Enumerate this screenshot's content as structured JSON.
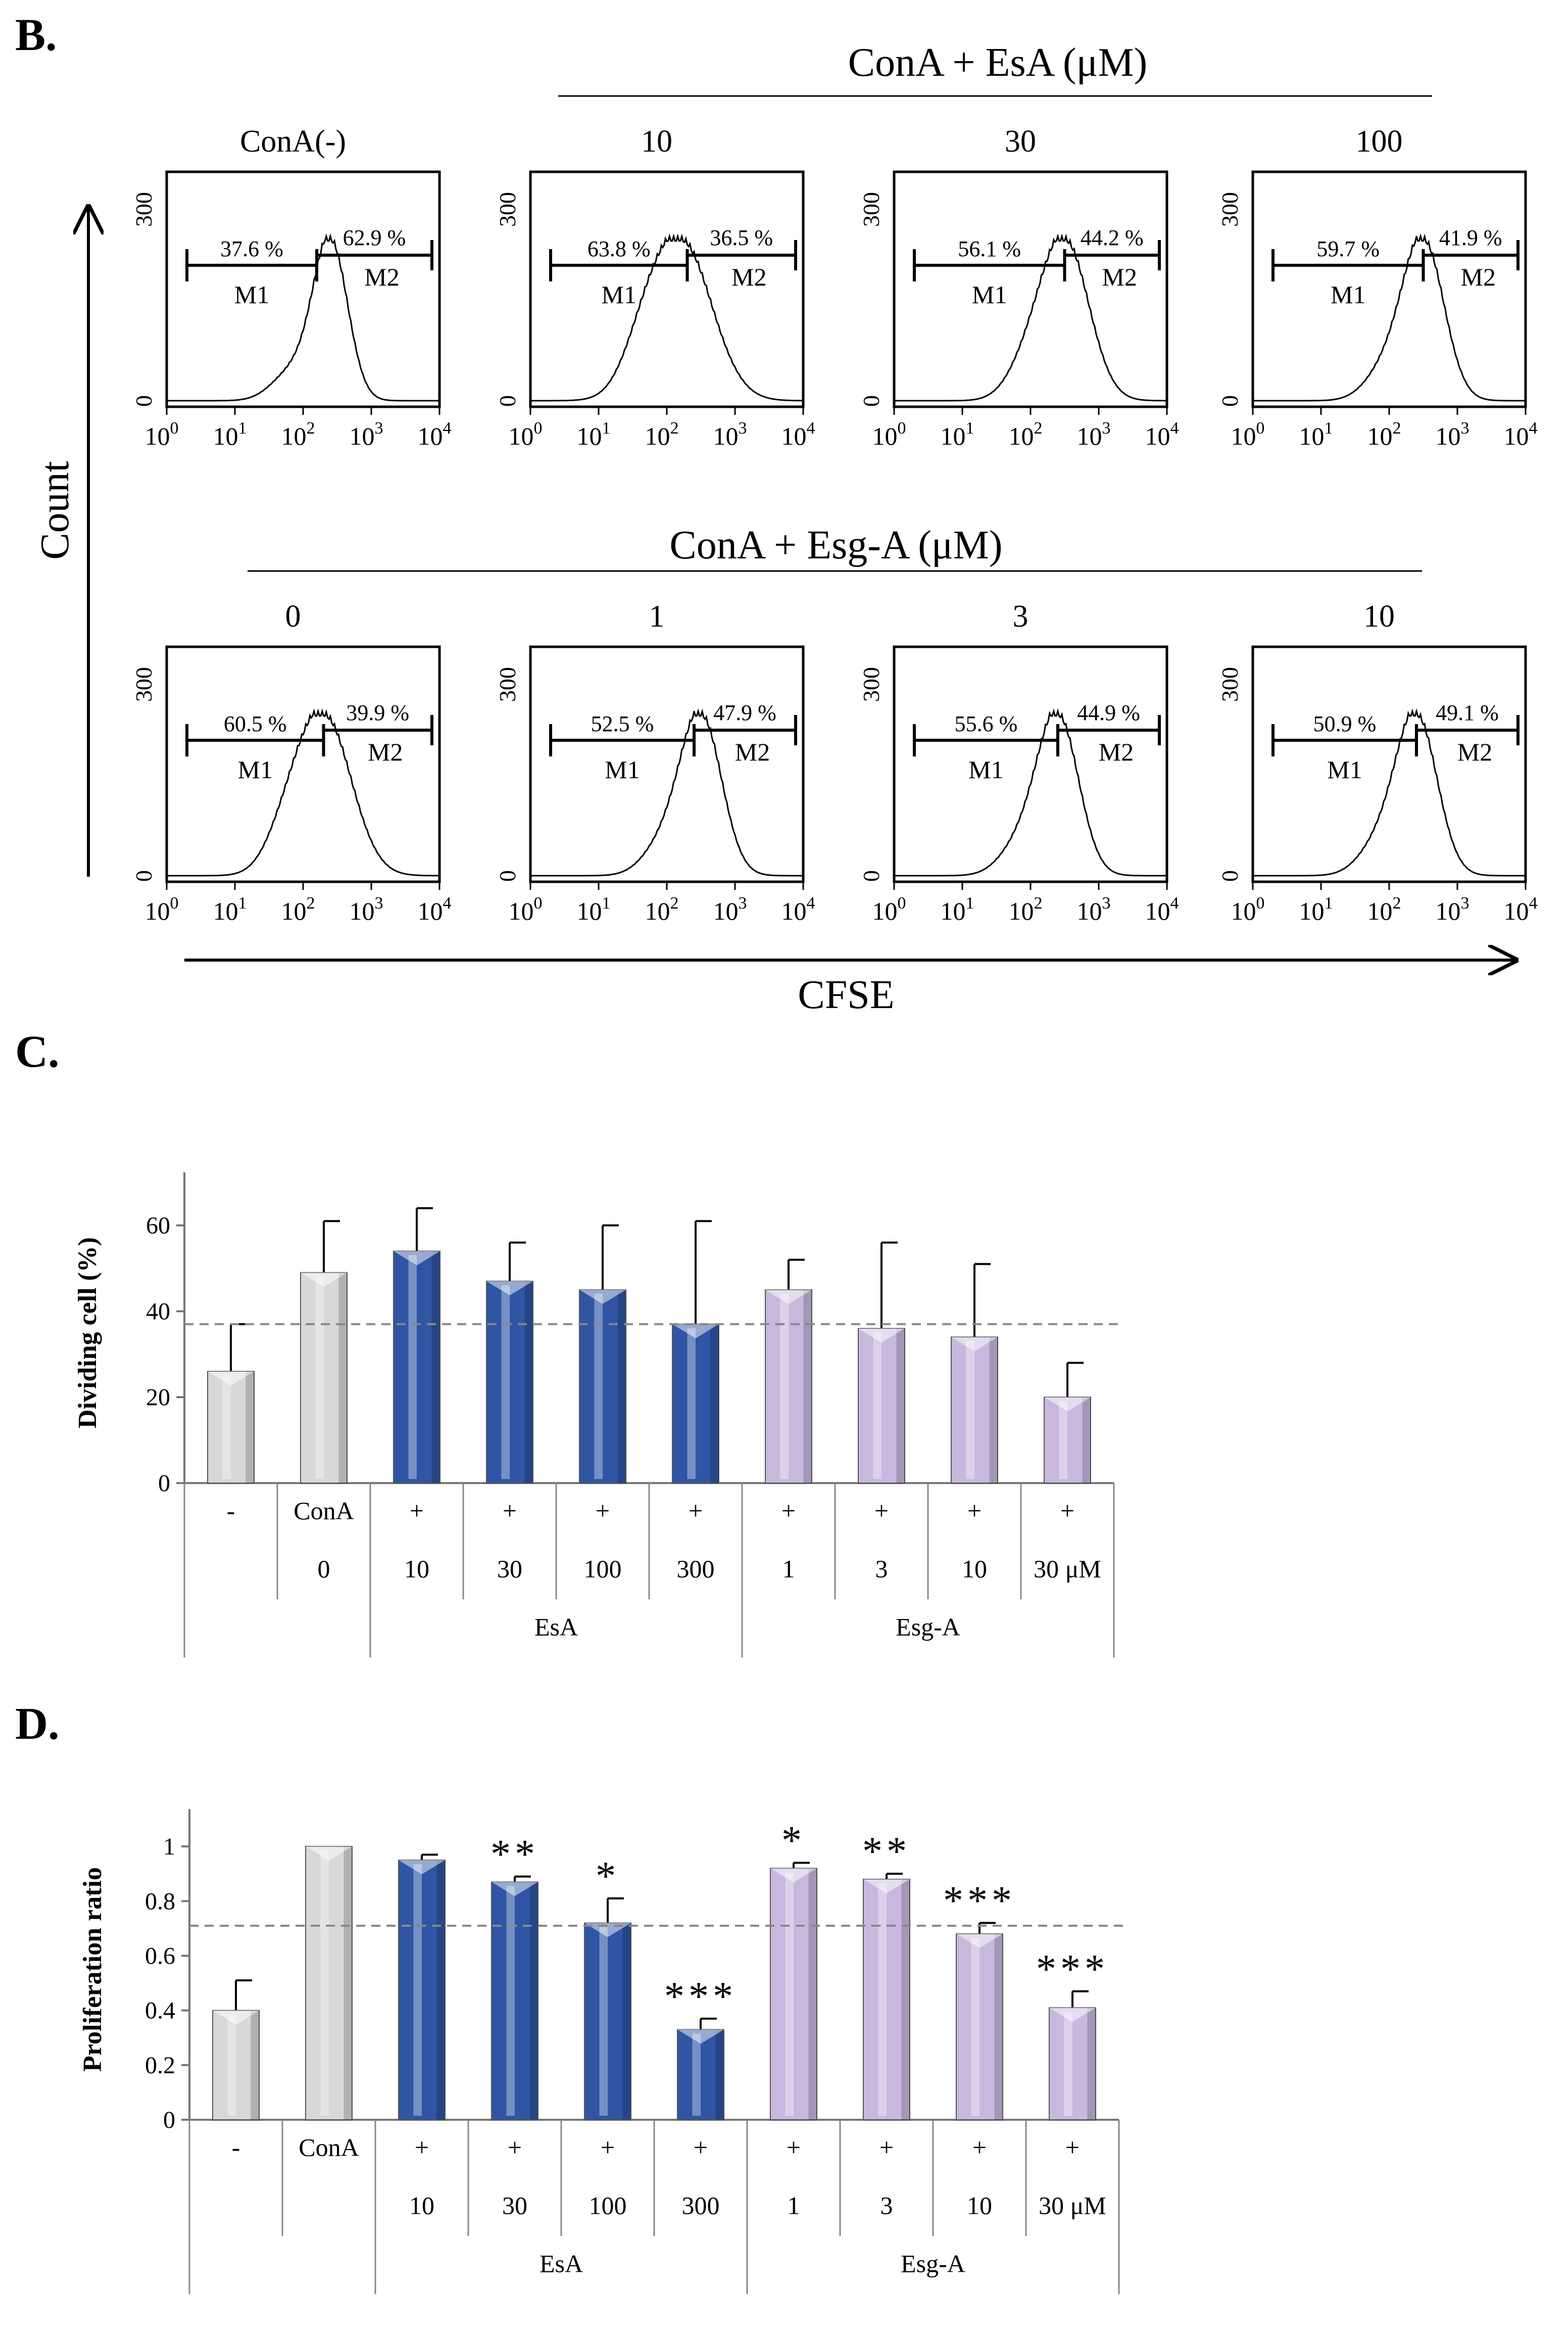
{
  "panel_labels": {
    "B": "B.",
    "C": "C.",
    "D": "D."
  },
  "flow": {
    "y_axis_label": "Count",
    "x_axis_label": "CFSE",
    "y_ticks": [
      "0",
      "300"
    ],
    "x_tick_base": "10",
    "x_tick_exps": [
      "0",
      "1",
      "2",
      "3",
      "4"
    ],
    "gate_labels": [
      "M1",
      "M2"
    ],
    "row_titles": [
      "ConA + EsA (μM)",
      "ConA + Esg-A (μM)"
    ],
    "panels": [
      {
        "title": "ConA(-)",
        "m1": "37.6 %",
        "m2": "62.9 %",
        "peak": 2.4,
        "width": 0.25,
        "gate_split": 2.2
      },
      {
        "title": "10",
        "m1": "63.8 %",
        "m2": "36.5 %",
        "peak": 2.2,
        "width": 0.45,
        "gate_split": 2.3
      },
      {
        "title": "30",
        "m1": "56.1 %",
        "m2": "44.2 %",
        "peak": 2.5,
        "width": 0.35,
        "gate_split": 2.5
      },
      {
        "title": "100",
        "m1": "59.7 %",
        "m2": "41.9 %",
        "peak": 2.5,
        "width": 0.3,
        "gate_split": 2.5
      },
      {
        "title": "0",
        "m1": "60.5 %",
        "m2": "39.9 %",
        "peak": 2.3,
        "width": 0.4,
        "gate_split": 2.3
      },
      {
        "title": "1",
        "m1": "52.5 %",
        "m2": "47.9 %",
        "peak": 2.5,
        "width": 0.3,
        "gate_split": 2.4
      },
      {
        "title": "3",
        "m1": "55.6 %",
        "m2": "44.9 %",
        "peak": 2.4,
        "width": 0.3,
        "gate_split": 2.4
      },
      {
        "title": "10",
        "m1": "50.9 %",
        "m2": "49.1 %",
        "peak": 2.4,
        "width": 0.3,
        "gate_split": 2.4
      }
    ]
  },
  "chart_data": [
    {
      "type": "bar",
      "title": "C.",
      "ylabel": "Dividing cell (%)",
      "ylim": [
        0,
        70
      ],
      "yticks": [
        0,
        20,
        40,
        60
      ],
      "reference_line": 37,
      "categories": [
        "-",
        "ConA 0",
        "EsA 10",
        "EsA 30",
        "EsA 100",
        "EsA 300",
        "Esg-A 1",
        "Esg-A 3",
        "Esg-A 10",
        "Esg-A 30 μM"
      ],
      "values": [
        26,
        49,
        54,
        47,
        45,
        37,
        45,
        36,
        34,
        20
      ],
      "errors": [
        11,
        12,
        10,
        9,
        15,
        24,
        7,
        20,
        17,
        8
      ],
      "colors": [
        "#d8d8d8",
        "#d8d8d8",
        "#2f55a4",
        "#2f55a4",
        "#2f55a4",
        "#2f55a4",
        "#c9b8de",
        "#c9b8de",
        "#c9b8de",
        "#c9b8de"
      ],
      "table_row1": [
        "-",
        "ConA",
        "+",
        "+",
        "+",
        "+",
        "+",
        "+",
        "+",
        "+"
      ],
      "table_row2": [
        "",
        "0",
        "10",
        "30",
        "100",
        "300",
        "1",
        "3",
        "10",
        "30 μM"
      ],
      "group_labels": [
        "EsA",
        "Esg-A"
      ],
      "significance": [
        "",
        "",
        "",
        "",
        "",
        "",
        "",
        "",
        "",
        ""
      ]
    },
    {
      "type": "bar",
      "title": "D.",
      "ylabel": "Proliferation ratio",
      "ylim": [
        0,
        1.1
      ],
      "yticks": [
        0,
        0.2,
        0.4,
        0.6,
        0.8,
        1
      ],
      "ytick_labels": [
        "0",
        "0.2",
        "0.4",
        "0.6",
        "0.8",
        "1"
      ],
      "reference_line": 0.71,
      "categories": [
        "-",
        "ConA",
        "EsA 10",
        "EsA 30",
        "EsA 100",
        "EsA 300",
        "Esg-A 1",
        "Esg-A 3",
        "Esg-A 10",
        "Esg-A 30 μM"
      ],
      "values": [
        0.4,
        1.0,
        0.95,
        0.87,
        0.72,
        0.33,
        0.92,
        0.88,
        0.68,
        0.41
      ],
      "errors": [
        0.11,
        0,
        0.02,
        0.02,
        0.09,
        0.04,
        0.02,
        0.02,
        0.04,
        0.06
      ],
      "colors": [
        "#d8d8d8",
        "#d8d8d8",
        "#2f55a4",
        "#2f55a4",
        "#2f55a4",
        "#2f55a4",
        "#c9b8de",
        "#c9b8de",
        "#c9b8de",
        "#c9b8de"
      ],
      "table_row1": [
        "-",
        "ConA",
        "+",
        "+",
        "+",
        "+",
        "+",
        "+",
        "+",
        "+"
      ],
      "table_row2": [
        "",
        "",
        "10",
        "30",
        "100",
        "300",
        "1",
        "3",
        "10",
        "30 μM"
      ],
      "group_labels": [
        "EsA",
        "Esg-A"
      ],
      "significance": [
        "",
        "",
        "",
        "**",
        "*",
        "***",
        "*",
        "**",
        "***",
        "***"
      ]
    }
  ]
}
